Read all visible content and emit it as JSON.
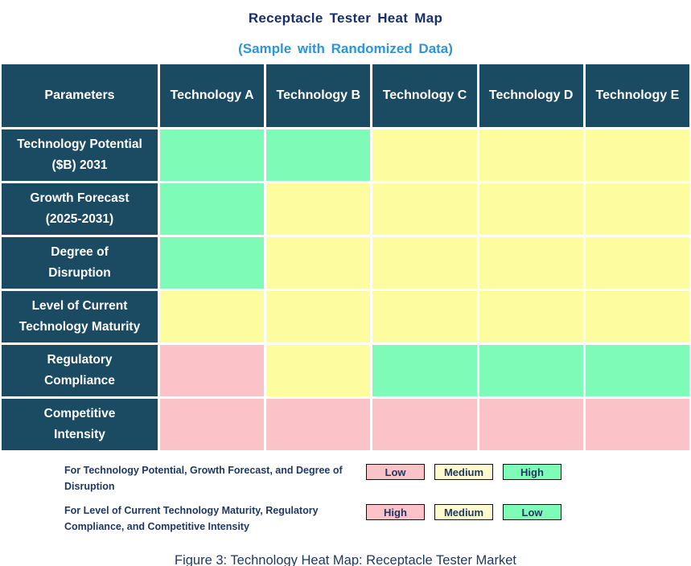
{
  "title": "Receptacle Tester Heat Map",
  "subtitle": "(Sample with Randomized Data)",
  "caption": "Figure 3: Technology Heat Map: Receptacle Tester Market",
  "colors": {
    "header_bg": "#1B4A63",
    "title_text": "#17306B",
    "subtitle_text": "#2B96D8",
    "green": "#7EFCB7",
    "yellow": "#FDFC9E",
    "pink": "#FBC2C7",
    "legend_yellow": "#FDFACE",
    "legend_text": "#1F3864",
    "grid_line": "#FFFFFF"
  },
  "chart_data": {
    "type": "heatmap",
    "title": "Receptacle Tester Heat Map",
    "subtitle": "(Sample with Randomized Data)",
    "columns": [
      "Parameters",
      "Technology A",
      "Technology B",
      "Technology C",
      "Technology D",
      "Technology E"
    ],
    "rows": [
      {
        "parameter": "Technology Potential ($B) 2031",
        "label_lines": [
          "Technology Potential",
          "($B) 2031"
        ],
        "cells": [
          {
            "color": "green",
            "rating": "High"
          },
          {
            "color": "green",
            "rating": "High"
          },
          {
            "color": "yellow",
            "rating": "Medium"
          },
          {
            "color": "yellow",
            "rating": "Medium"
          },
          {
            "color": "yellow",
            "rating": "Medium"
          }
        ]
      },
      {
        "parameter": "Growth Forecast (2025-2031)",
        "label_lines": [
          "Growth Forecast",
          "(2025-2031)"
        ],
        "cells": [
          {
            "color": "green",
            "rating": "High"
          },
          {
            "color": "yellow",
            "rating": "Medium"
          },
          {
            "color": "yellow",
            "rating": "Medium"
          },
          {
            "color": "yellow",
            "rating": "Medium"
          },
          {
            "color": "yellow",
            "rating": "Medium"
          }
        ]
      },
      {
        "parameter": "Degree of Disruption",
        "label_lines": [
          "Degree of",
          "Disruption"
        ],
        "cells": [
          {
            "color": "green",
            "rating": "High"
          },
          {
            "color": "yellow",
            "rating": "Medium"
          },
          {
            "color": "yellow",
            "rating": "Medium"
          },
          {
            "color": "yellow",
            "rating": "Medium"
          },
          {
            "color": "yellow",
            "rating": "Medium"
          }
        ]
      },
      {
        "parameter": "Level of Current Technology Maturity",
        "label_lines": [
          "Level of Current",
          "Technology Maturity"
        ],
        "cells": [
          {
            "color": "yellow",
            "rating": "Medium"
          },
          {
            "color": "yellow",
            "rating": "Medium"
          },
          {
            "color": "yellow",
            "rating": "Medium"
          },
          {
            "color": "yellow",
            "rating": "Medium"
          },
          {
            "color": "yellow",
            "rating": "Medium"
          }
        ]
      },
      {
        "parameter": "Regulatory Compliance",
        "label_lines": [
          "Regulatory",
          "Compliance"
        ],
        "cells": [
          {
            "color": "pink",
            "rating": "High"
          },
          {
            "color": "yellow",
            "rating": "Medium"
          },
          {
            "color": "green",
            "rating": "Low"
          },
          {
            "color": "green",
            "rating": "Low"
          },
          {
            "color": "green",
            "rating": "Low"
          }
        ]
      },
      {
        "parameter": "Competitive Intensity",
        "label_lines": [
          "Competitive",
          "Intensity"
        ],
        "cells": [
          {
            "color": "pink",
            "rating": "High"
          },
          {
            "color": "pink",
            "rating": "High"
          },
          {
            "color": "pink",
            "rating": "High"
          },
          {
            "color": "pink",
            "rating": "High"
          },
          {
            "color": "pink",
            "rating": "High"
          }
        ]
      }
    ]
  },
  "legend": {
    "note1": "For Technology Potential, Growth Forecast, and Degree of Disruption",
    "note2": "For Level of Current Technology Maturity, Regulatory Compliance, and Competitive Intensity",
    "row1": [
      {
        "label": "Low",
        "color": "pink"
      },
      {
        "label": "Medium",
        "color": "legend_yellow"
      },
      {
        "label": "High",
        "color": "green"
      }
    ],
    "row2": [
      {
        "label": "High",
        "color": "pink"
      },
      {
        "label": "Medium",
        "color": "legend_yellow"
      },
      {
        "label": "Low",
        "color": "green"
      }
    ]
  }
}
